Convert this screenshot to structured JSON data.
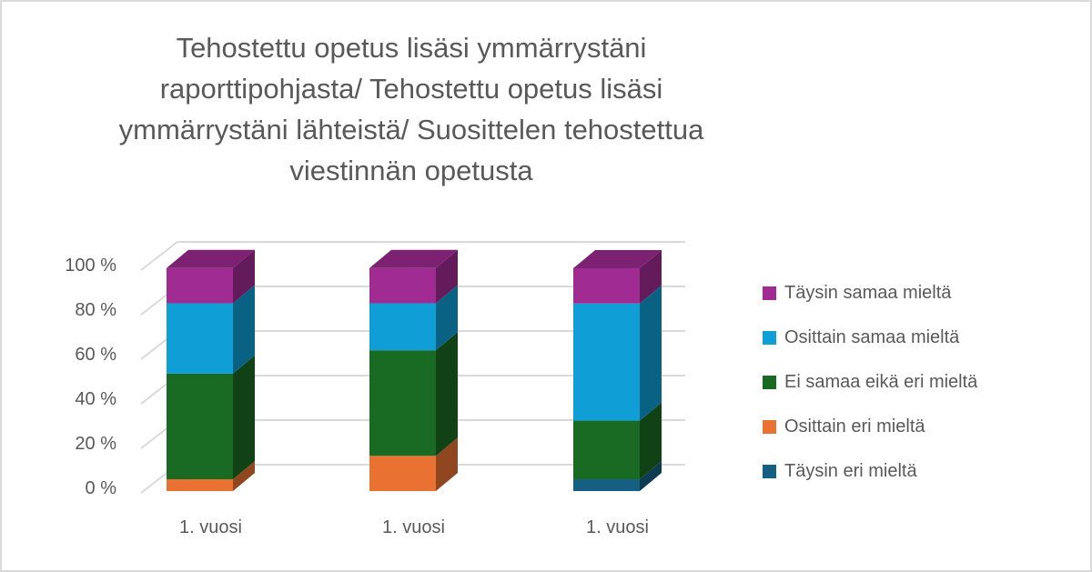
{
  "chart_data": {
    "type": "bar",
    "subtype": "stacked-percent-3d-column",
    "title": "Tehostettu opetus lisäsi ymmärrystäni raporttipohjasta/ Tehostettu opetus lisäsi ymmärrystäni lähteistä/ Suosittelen tehostettua viestinnän opetusta",
    "title_lines": [
      "Tehostettu opetus lisäsi ymmärrystäni",
      "raporttipohjasta/ Tehostettu opetus lisäsi",
      "ymmärrystäni lähteistä/ Suosittelen tehostettua",
      "viestinnän opetusta"
    ],
    "categories": [
      "1. vuosi",
      "1. vuosi",
      "1. vuosi"
    ],
    "xlabel": "",
    "ylabel": "",
    "ylim": [
      0,
      100
    ],
    "yticks": [
      "0 %",
      "20 %",
      "40 %",
      "60 %",
      "80 %",
      "100 %"
    ],
    "grid": true,
    "legend_position": "right",
    "series": [
      {
        "name": "Täysin eri mieltä",
        "color": "#156082",
        "values": [
          0,
          0,
          5.3
        ]
      },
      {
        "name": "Osittain eri mieltä",
        "color": "#E97132",
        "values": [
          5.3,
          15.8,
          0
        ]
      },
      {
        "name": "Ei samaa eikä eri mieltä",
        "color": "#196B24",
        "values": [
          47.4,
          47.4,
          26.3
        ]
      },
      {
        "name": "Osittain samaa mieltä",
        "color": "#0F9ED5",
        "values": [
          31.6,
          21.1,
          52.6
        ]
      },
      {
        "name": "Täysin samaa mieltä",
        "color": "#A02B93",
        "values": [
          15.8,
          15.8,
          15.8
        ]
      }
    ]
  },
  "legend": [
    {
      "label": "Täysin samaa mieltä",
      "color": "#A02B93"
    },
    {
      "label": "Osittain samaa mieltä",
      "color": "#0F9ED5"
    },
    {
      "label": "Ei samaa eikä eri mieltä",
      "color": "#196B24"
    },
    {
      "label": "Osittain eri mieltä",
      "color": "#E97132"
    },
    {
      "label": "Täysin eri mieltä",
      "color": "#156082"
    }
  ]
}
